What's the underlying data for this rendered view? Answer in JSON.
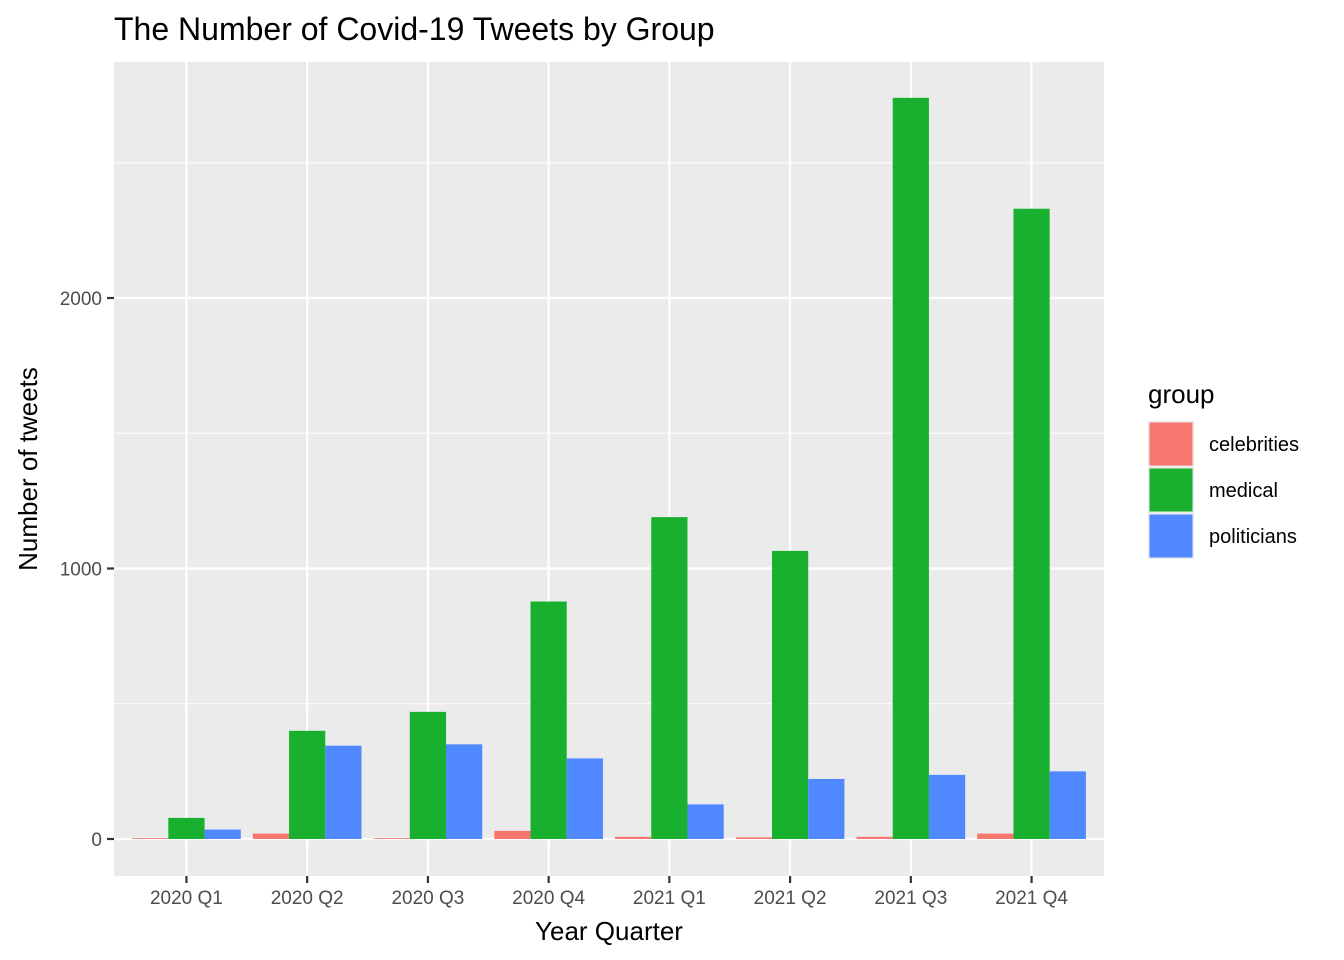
{
  "chart_data": {
    "type": "bar",
    "title": "The Number of Covid-19 Tweets by Group",
    "xlabel": "Year Quarter",
    "ylabel": "Number of tweets",
    "categories": [
      "2020 Q1",
      "2020 Q2",
      "2020 Q3",
      "2020 Q4",
      "2021 Q1",
      "2021 Q2",
      "2021 Q3",
      "2021 Q4"
    ],
    "series": [
      {
        "name": "celebrities",
        "color": "#F8766D",
        "values": [
          3,
          20,
          3,
          30,
          8,
          6,
          8,
          20
        ]
      },
      {
        "name": "medical",
        "color": "#1AB02F",
        "values": [
          78,
          400,
          470,
          878,
          1190,
          1065,
          2740,
          2330
        ]
      },
      {
        "name": "politicians",
        "color": "#5089FF",
        "values": [
          35,
          345,
          350,
          298,
          128,
          222,
          237,
          250
        ]
      }
    ],
    "y_ticks": [
      0,
      1000,
      2000
    ],
    "ylim": [
      -130,
      2880
    ],
    "legend": {
      "title": "group",
      "position": "right"
    },
    "grid": true
  }
}
